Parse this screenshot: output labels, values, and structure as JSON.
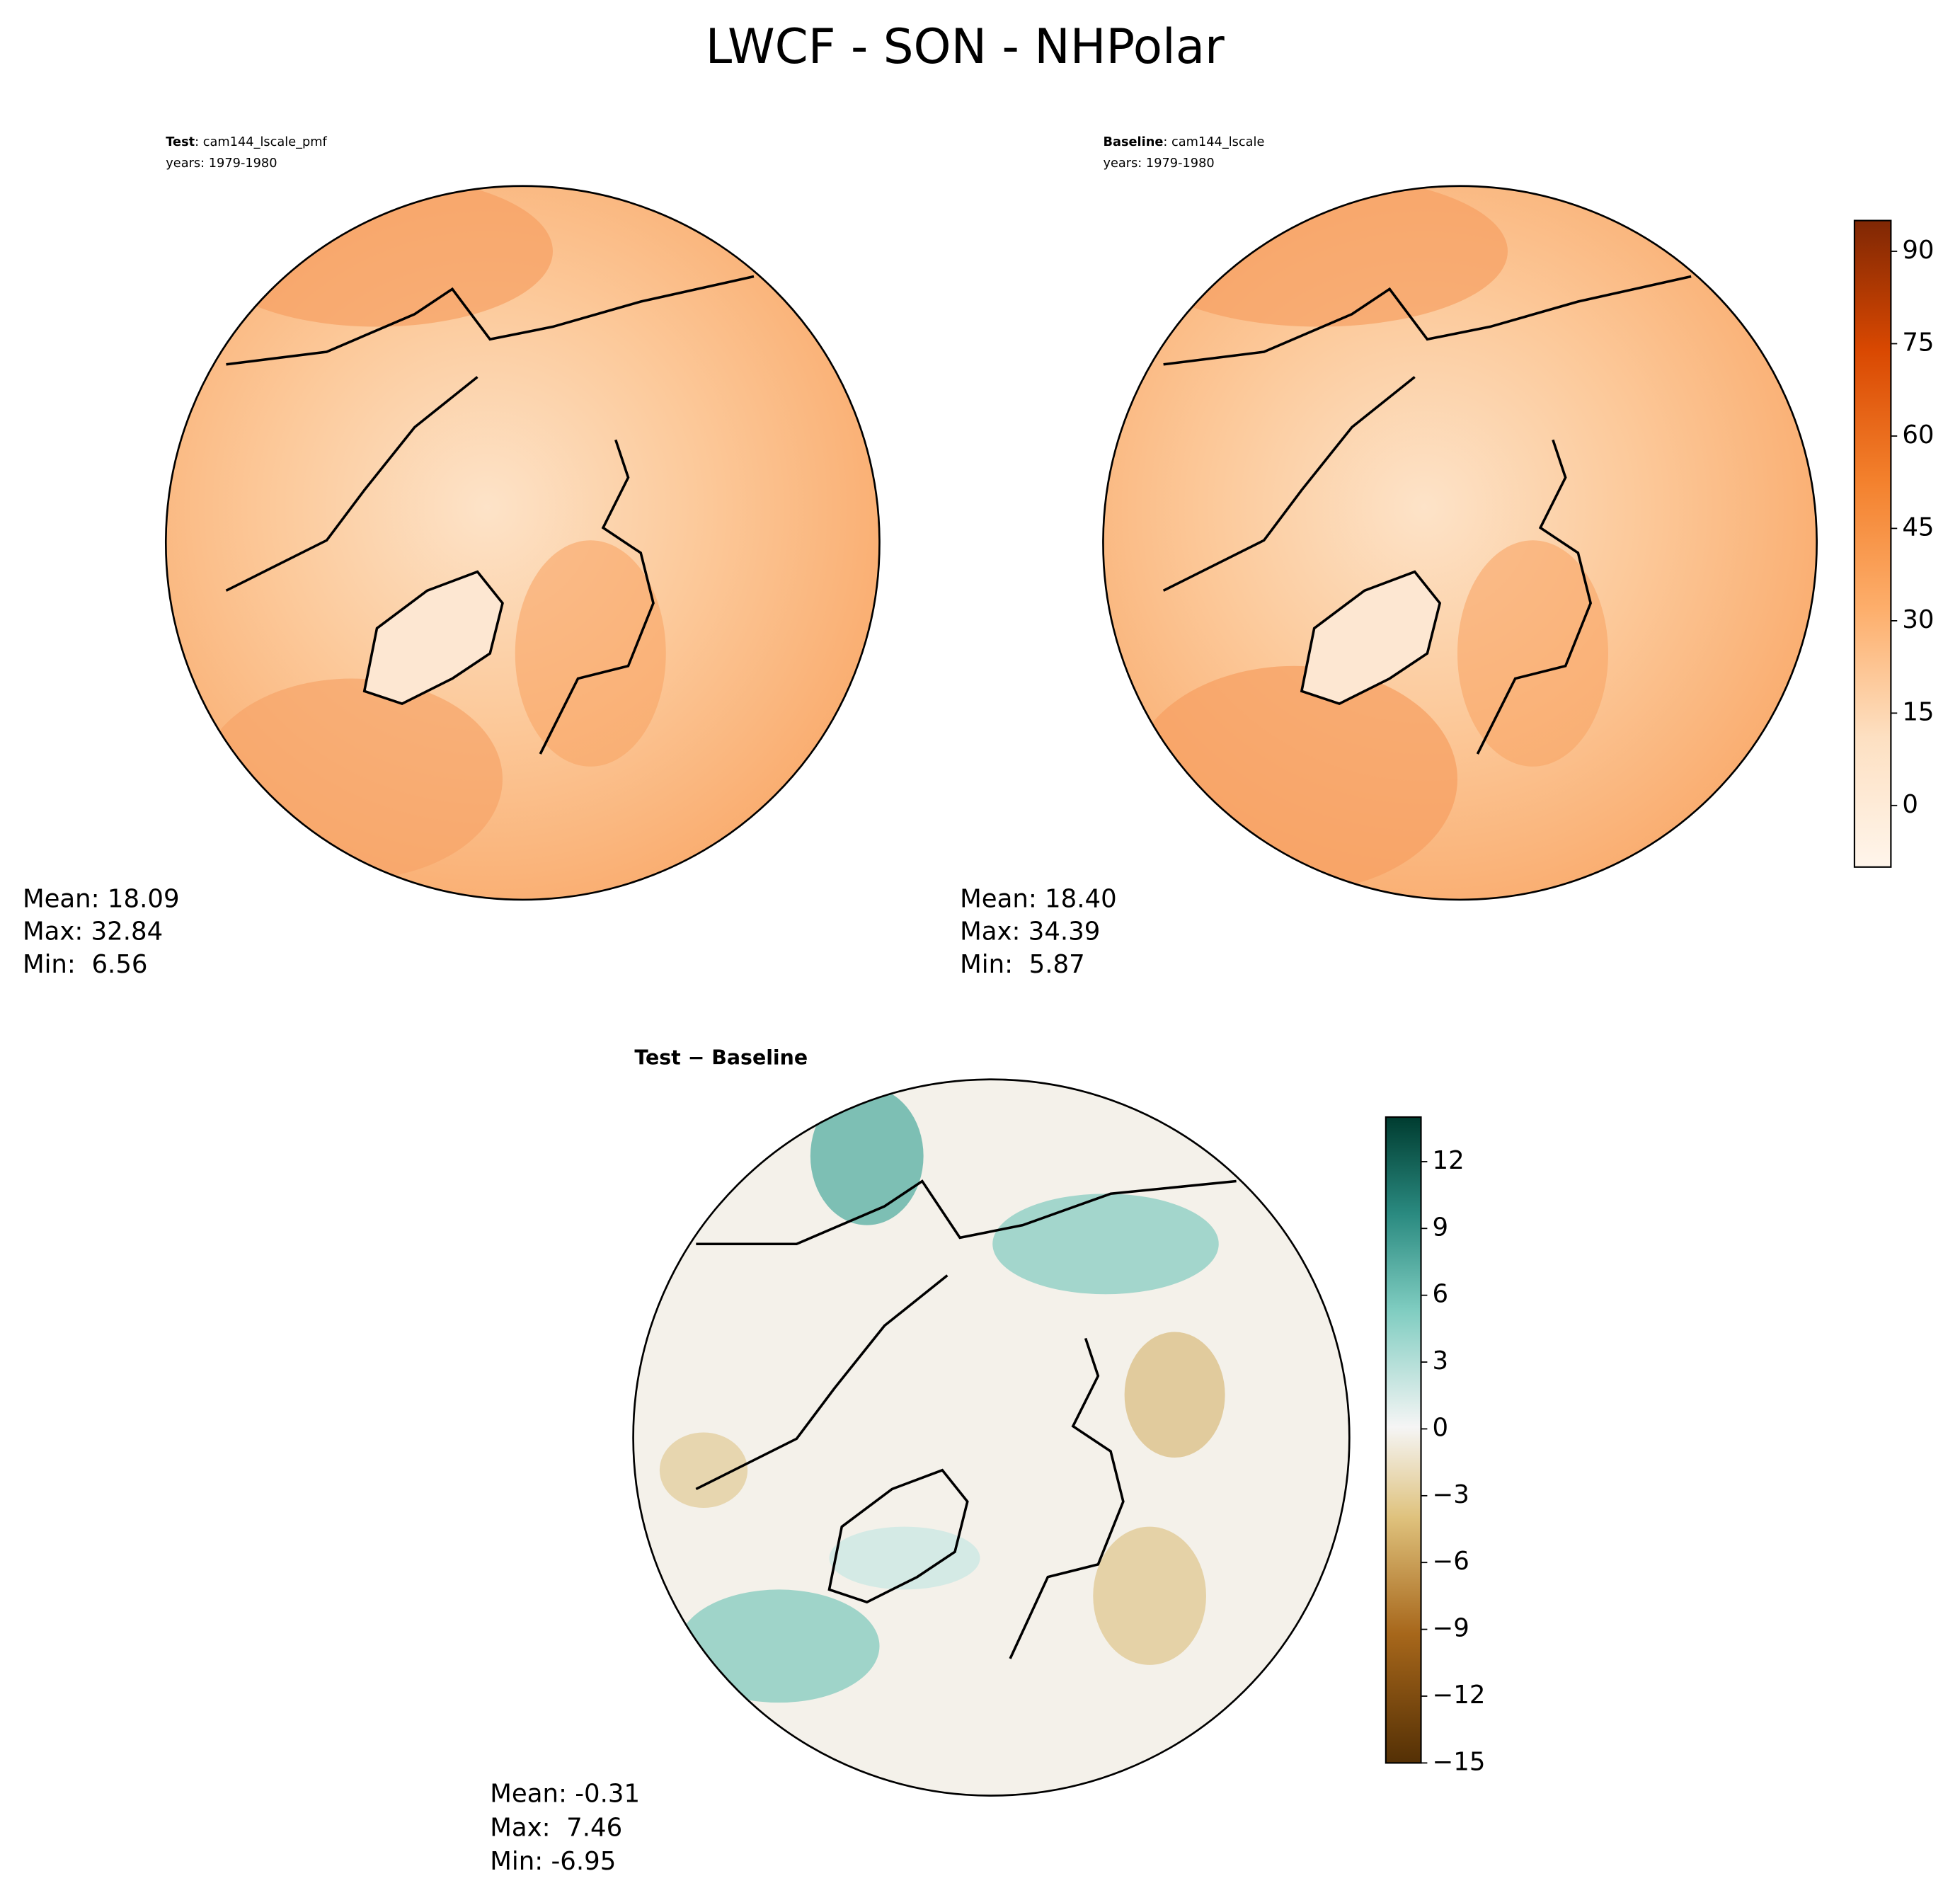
{
  "title": "LWCF - SON - NHPolar",
  "panels": [
    {
      "label": "Test",
      "case": ": cam144_lscale_pmf",
      "years": "years: 1979-1980",
      "stats": [
        "Mean: 18.09",
        "Max: 32.84",
        "Min:  6.56"
      ]
    },
    {
      "label": "Baseline",
      "case": ": cam144_lscale",
      "years": "years: 1979-1980",
      "stats": [
        "Mean: 18.40",
        "Max: 34.39",
        "Min:  5.87"
      ]
    },
    {
      "label": "Test − Baseline",
      "stats": [
        "Mean: -0.31",
        "Max:  7.46",
        "Min: -6.95"
      ]
    }
  ],
  "colorbars": [
    {
      "lim": [
        -10,
        95
      ],
      "ticks": [
        0,
        15,
        30,
        45,
        60,
        75,
        90
      ]
    },
    {
      "lim": [
        -15,
        14
      ],
      "ticks": [
        {
          "value": -15,
          "label": "−15"
        },
        {
          "value": -12,
          "label": "−12"
        },
        {
          "value": -9,
          "label": "−9"
        },
        {
          "value": -6,
          "label": "−6"
        },
        {
          "value": -3,
          "label": "−3"
        },
        0,
        3,
        6,
        9,
        12
      ]
    }
  ]
}
